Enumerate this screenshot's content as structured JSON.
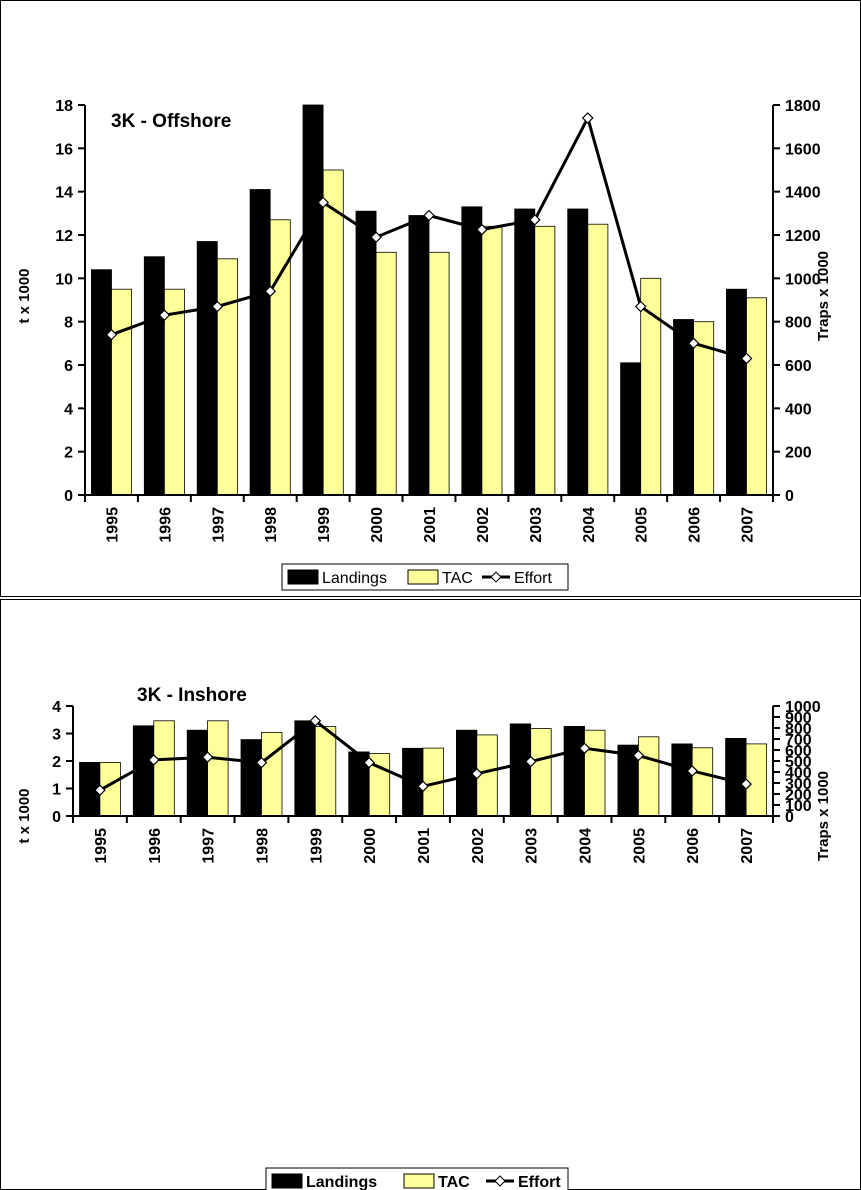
{
  "chart_data": [
    {
      "type": "bar",
      "title": "3K - Offshore",
      "categories": [
        "1995",
        "1996",
        "1997",
        "1998",
        "1999",
        "2000",
        "2001",
        "2002",
        "2003",
        "2004",
        "2005",
        "2006",
        "2007"
      ],
      "series": [
        {
          "name": "Landings",
          "kind": "bar",
          "axis": "left",
          "color": "#000000",
          "values": [
            10.4,
            11.0,
            11.7,
            14.1,
            18.0,
            13.1,
            12.9,
            13.3,
            13.2,
            13.2,
            6.1,
            8.1,
            9.5
          ]
        },
        {
          "name": "TAC",
          "kind": "bar",
          "axis": "left",
          "color": "#FFFF99",
          "values": [
            9.5,
            9.5,
            10.9,
            12.7,
            15.0,
            11.2,
            11.2,
            12.4,
            12.4,
            12.5,
            10.0,
            8.0,
            9.1
          ]
        },
        {
          "name": "Effort",
          "kind": "line",
          "axis": "right",
          "color": "#000000",
          "values": [
            740,
            830,
            870,
            940,
            1350,
            1190,
            1290,
            1225,
            1270,
            1740,
            870,
            700,
            630
          ]
        }
      ],
      "ylabel": "t x 1000",
      "y2label": "Traps x 1000",
      "ylim": [
        0,
        18
      ],
      "yticks": [
        0,
        2,
        4,
        6,
        8,
        10,
        12,
        14,
        16,
        18
      ],
      "y2lim": [
        0,
        1800
      ],
      "y2ticks": [
        0,
        200,
        400,
        600,
        800,
        1000,
        1200,
        1400,
        1600,
        1800
      ],
      "legend": {
        "position": "bottom",
        "labels": [
          "Landings",
          "TAC",
          "Effort"
        ],
        "bold": false
      },
      "grid": false
    },
    {
      "type": "bar",
      "title": "3K - Inshore",
      "categories": [
        "1995",
        "1996",
        "1997",
        "1998",
        "1999",
        "2000",
        "2001",
        "2002",
        "2003",
        "2004",
        "2005",
        "2006",
        "2007"
      ],
      "series": [
        {
          "name": "Landings",
          "kind": "bar",
          "axis": "left",
          "color": "#000000",
          "values": [
            1.95,
            3.28,
            3.12,
            2.78,
            3.46,
            2.33,
            2.46,
            3.12,
            3.35,
            3.26,
            2.58,
            2.62,
            2.82
          ]
        },
        {
          "name": "TAC",
          "kind": "bar",
          "axis": "left",
          "color": "#FFFF99",
          "values": [
            1.95,
            3.46,
            3.46,
            3.04,
            3.25,
            2.27,
            2.47,
            2.95,
            3.18,
            3.12,
            2.88,
            2.48,
            2.62
          ]
        },
        {
          "name": "Effort",
          "kind": "line",
          "axis": "right",
          "color": "#000000",
          "values": [
            235,
            510,
            535,
            485,
            865,
            485,
            270,
            385,
            495,
            615,
            550,
            410,
            290
          ]
        }
      ],
      "ylabel": "t x 1000",
      "y2label": "Traps x 1000",
      "ylim": [
        0,
        4
      ],
      "yticks": [
        0,
        1,
        2,
        3,
        4
      ],
      "y2lim": [
        0,
        1000
      ],
      "y2ticks": [
        0,
        100,
        200,
        300,
        400,
        500,
        600,
        700,
        800,
        900,
        1000
      ],
      "legend": {
        "position": "bottom",
        "labels": [
          "Landings",
          "TAC",
          "Effort"
        ],
        "bold": true
      },
      "grid": false
    }
  ]
}
